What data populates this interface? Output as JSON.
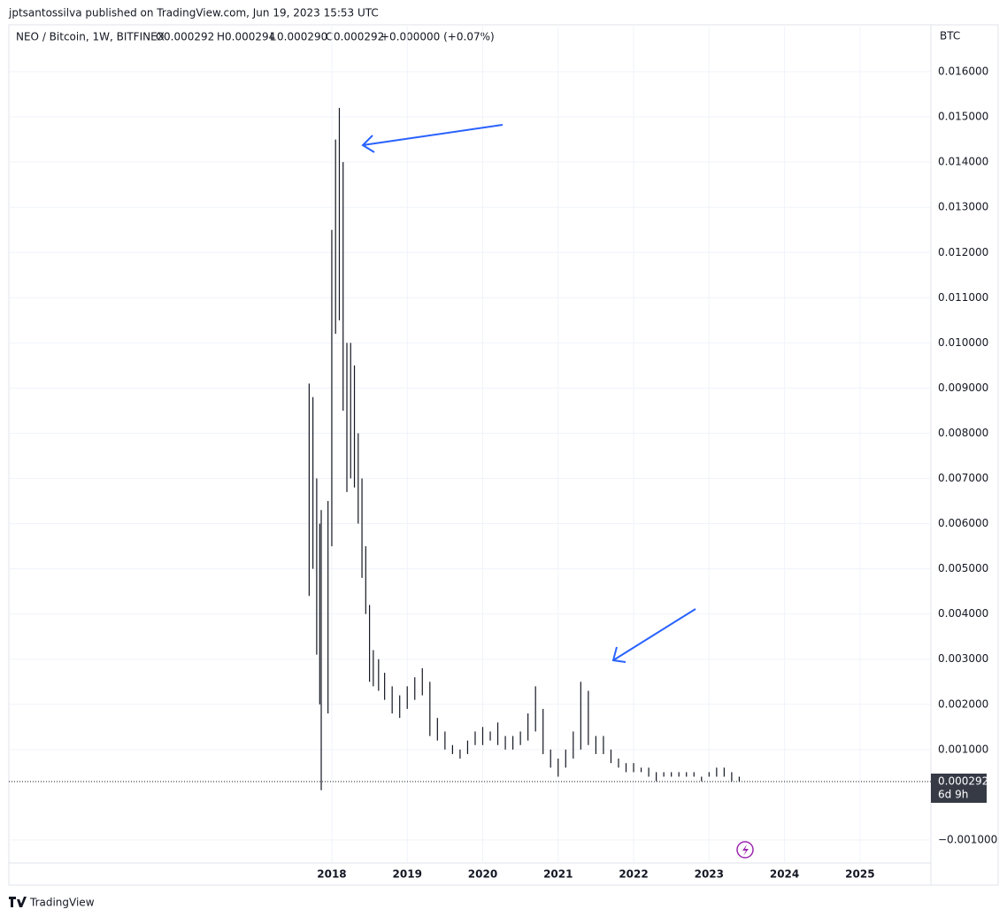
{
  "publisher": "jptsantossilva published on TradingView.com, Jun 19, 2023 15:53 UTC",
  "header": {
    "symbol": "NEO / Bitcoin, 1W, BITFINEX",
    "open_label": "O",
    "open": "0.000292",
    "high_label": "H",
    "high": "0.000294",
    "low_label": "L",
    "low": "0.000290",
    "close_label": "C",
    "close": "0.000292",
    "change": "+0.000000 (+0.07%)"
  },
  "brand": "TradingView",
  "chart_data": {
    "type": "ohlc",
    "currency": "BTC",
    "color": "#131722",
    "grid": true,
    "xlim": [
      2013.72,
      2025.94
    ],
    "xticks": [
      2018,
      2019,
      2020,
      2021,
      2022,
      2023,
      2024,
      2025
    ],
    "ylim": [
      -0.002,
      0.017
    ],
    "yticks": [
      {
        "value": 0.016,
        "label": "0.016000"
      },
      {
        "value": 0.015,
        "label": "0.015000"
      },
      {
        "value": 0.014,
        "label": "0.014000"
      },
      {
        "value": 0.013,
        "label": "0.013000"
      },
      {
        "value": 0.012,
        "label": "0.012000"
      },
      {
        "value": 0.011,
        "label": "0.011000"
      },
      {
        "value": 0.01,
        "label": "0.010000"
      },
      {
        "value": 0.009,
        "label": "0.009000"
      },
      {
        "value": 0.008,
        "label": "0.008000"
      },
      {
        "value": 0.007,
        "label": "0.007000"
      },
      {
        "value": 0.006,
        "label": "0.006000"
      },
      {
        "value": 0.005,
        "label": "0.005000"
      },
      {
        "value": 0.004,
        "label": "0.004000"
      },
      {
        "value": 0.003,
        "label": "0.003000"
      },
      {
        "value": 0.002,
        "label": "0.002000"
      },
      {
        "value": 0.001,
        "label": "0.001000"
      },
      {
        "value": -0.001,
        "label": "−0.001000"
      }
    ],
    "last_price": 0.000292,
    "countdown": "6d 9h",
    "x": [
      2017.7,
      2017.75,
      2017.8,
      2017.84,
      2017.86,
      2017.95,
      2018.0,
      2018.05,
      2018.1,
      2018.15,
      2018.2,
      2018.25,
      2018.3,
      2018.35,
      2018.4,
      2018.45,
      2018.5,
      2018.55,
      2018.62,
      2018.7,
      2018.8,
      2018.9,
      2019.0,
      2019.1,
      2019.2,
      2019.3,
      2019.4,
      2019.5,
      2019.6,
      2019.7,
      2019.8,
      2019.9,
      2020.0,
      2020.1,
      2020.2,
      2020.3,
      2020.4,
      2020.5,
      2020.6,
      2020.7,
      2020.8,
      2020.9,
      2021.0,
      2021.1,
      2021.2,
      2021.3,
      2021.4,
      2021.5,
      2021.6,
      2021.7,
      2021.8,
      2021.9,
      2022.0,
      2022.1,
      2022.2,
      2022.3,
      2022.4,
      2022.5,
      2022.6,
      2022.7,
      2022.8,
      2022.9,
      2023.0,
      2023.1,
      2023.2,
      2023.3,
      2023.4
    ],
    "high": [
      0.0091,
      0.0088,
      0.007,
      0.006,
      0.0063,
      0.0065,
      0.0125,
      0.0145,
      0.0152,
      0.014,
      0.01,
      0.01,
      0.0095,
      0.008,
      0.007,
      0.0055,
      0.0042,
      0.0032,
      0.003,
      0.0027,
      0.0024,
      0.0022,
      0.0024,
      0.0026,
      0.0028,
      0.0025,
      0.0017,
      0.0014,
      0.0011,
      0.001,
      0.0012,
      0.0014,
      0.0015,
      0.0014,
      0.0016,
      0.0013,
      0.0013,
      0.0014,
      0.0018,
      0.0024,
      0.0019,
      0.001,
      0.0008,
      0.001,
      0.0014,
      0.0025,
      0.0023,
      0.0013,
      0.0013,
      0.001,
      0.0008,
      0.0007,
      0.0007,
      0.0006,
      0.0006,
      0.0005,
      0.0005,
      0.0005,
      0.0005,
      0.0005,
      0.0005,
      0.0004,
      0.0005,
      0.0006,
      0.0006,
      0.0005,
      0.0004
    ],
    "low": [
      0.0044,
      0.005,
      0.0031,
      0.002,
      0.0001,
      0.0018,
      0.0055,
      0.0102,
      0.0105,
      0.0085,
      0.0067,
      0.007,
      0.0068,
      0.006,
      0.0048,
      0.004,
      0.0025,
      0.0024,
      0.0023,
      0.0021,
      0.0018,
      0.0017,
      0.0019,
      0.0021,
      0.0022,
      0.0013,
      0.0012,
      0.001,
      0.0009,
      0.0008,
      0.0009,
      0.0011,
      0.0011,
      0.0012,
      0.0011,
      0.001,
      0.001,
      0.0011,
      0.0012,
      0.0014,
      0.0009,
      0.0006,
      0.0004,
      0.0006,
      0.0008,
      0.001,
      0.0011,
      0.0009,
      0.0009,
      0.0007,
      0.0006,
      0.0005,
      0.0005,
      0.0005,
      0.0004,
      0.0003,
      0.0004,
      0.0004,
      0.0004,
      0.0004,
      0.0004,
      0.0003,
      0.0004,
      0.0004,
      0.0004,
      0.0003,
      0.0003
    ]
  }
}
